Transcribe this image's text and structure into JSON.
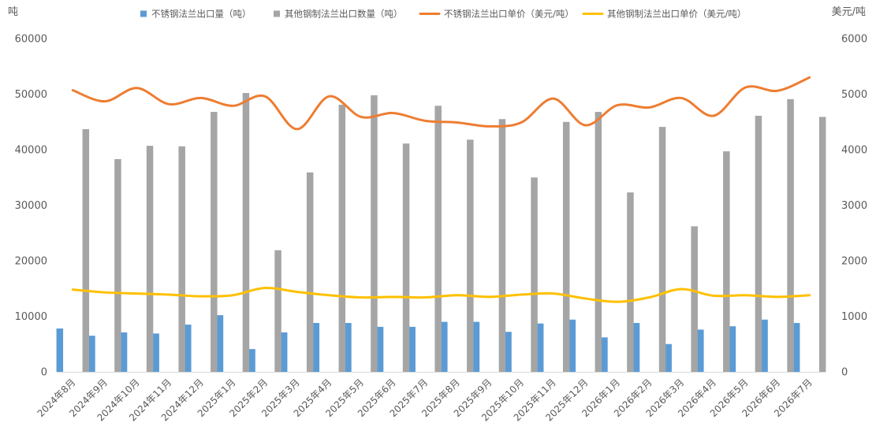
{
  "chart_data": {
    "type": "bar",
    "title": "",
    "left_axis_unit": "吨",
    "right_axis_unit": "美元/吨",
    "ylim_left": [
      0,
      60000
    ],
    "ylim_right": [
      0,
      6000
    ],
    "left_ticks": [
      "0",
      "10000",
      "20000",
      "30000",
      "40000",
      "50000",
      "60000"
    ],
    "right_ticks": [
      "0",
      "1000",
      "2000",
      "3000",
      "4000",
      "5000",
      "6000"
    ],
    "grid": false,
    "legend_position": "top",
    "categories": [
      "2024年8月",
      "2024年9月",
      "2024年10月",
      "2024年11月",
      "2024年12月",
      "2025年1月",
      "2025年2月",
      "2025年3月",
      "2025年4月",
      "2025年5月",
      "2025年6月",
      "2025年7月",
      "2025年8月",
      "2025年9月",
      "2025年10月",
      "2025年11月",
      "2025年12月",
      "2026年1月",
      "2026年2月",
      "2026年3月",
      "2026年4月",
      "2026年5月",
      "2026年6月",
      "2026年7月"
    ],
    "series": [
      {
        "name": "不锈钢法兰出口量（吨）",
        "type": "bar",
        "axis": "left",
        "color": "#5B9BD5",
        "values": [
          7800,
          6500,
          7100,
          6900,
          8500,
          10200,
          4100,
          7100,
          8800,
          8800,
          8100,
          8100,
          9000,
          9000,
          7200,
          8700,
          9400,
          6200,
          8800,
          5000,
          7600,
          8200,
          9400,
          8800
        ]
      },
      {
        "name": "其他钢制法兰出口数量（吨）",
        "type": "bar",
        "axis": "left",
        "color": "#A5A5A5",
        "values": [
          43700,
          38300,
          40700,
          40600,
          46800,
          50200,
          21900,
          35900,
          48100,
          49800,
          41100,
          47900,
          41800,
          45500,
          35000,
          45000,
          46800,
          32300,
          44100,
          26200,
          39700,
          46100,
          49100,
          45900
        ]
      },
      {
        "name": "不锈钢法兰出口单价（美元/吨）",
        "type": "line",
        "axis": "right",
        "color": "#ED7D31",
        "values": [
          5070,
          4870,
          5110,
          4820,
          4930,
          4790,
          4960,
          4370,
          4960,
          4590,
          4660,
          4520,
          4490,
          4420,
          4490,
          4920,
          4440,
          4800,
          4760,
          4930,
          4610,
          5120,
          5060,
          5300
        ]
      },
      {
        "name": "其他钢制法兰出口单价（美元/吨）",
        "type": "line",
        "axis": "right",
        "color": "#FFC000",
        "values": [
          1480,
          1430,
          1410,
          1390,
          1360,
          1380,
          1510,
          1440,
          1380,
          1340,
          1350,
          1340,
          1380,
          1350,
          1390,
          1410,
          1320,
          1260,
          1340,
          1490,
          1370,
          1380,
          1350,
          1380
        ]
      }
    ]
  }
}
